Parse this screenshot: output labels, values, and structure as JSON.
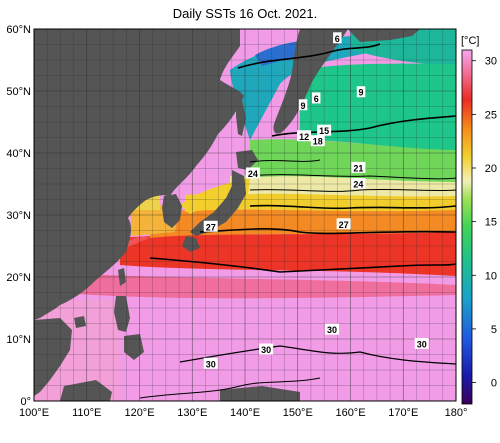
{
  "title": "Daily SSTs 16 Oct. 2021.",
  "map": {
    "lon_range": [
      100,
      180
    ],
    "lat_range": [
      0,
      60
    ],
    "land_color": "#555555",
    "grid_color": "#2a2a2a",
    "lon_ticks": [
      "100°E",
      "110°E",
      "120°E",
      "130°E",
      "140°E",
      "150°E",
      "160°E",
      "170°E",
      "180°"
    ],
    "lat_ticks": [
      "0°",
      "10°N",
      "20°N",
      "30°N",
      "40°N",
      "50°N",
      "60°N"
    ]
  },
  "colorbar": {
    "unit": "[°C]",
    "range": [
      -2,
      31
    ],
    "ticks": [
      "0",
      "5",
      "10",
      "15",
      "20",
      "25",
      "30"
    ],
    "tick_values": [
      0,
      5,
      10,
      15,
      20,
      25,
      30
    ]
  },
  "isotherm_labels": [
    {
      "text": "6",
      "lon": 157.5,
      "lat": 58.5
    },
    {
      "text": "9",
      "lon": 162,
      "lat": 49.8
    },
    {
      "text": "6",
      "lon": 153.5,
      "lat": 48.8
    },
    {
      "text": "9",
      "lon": 151,
      "lat": 47.7
    },
    {
      "text": "15",
      "lon": 155,
      "lat": 43.6
    },
    {
      "text": "12",
      "lon": 151.2,
      "lat": 42.7
    },
    {
      "text": "18",
      "lon": 153.8,
      "lat": 41.9
    },
    {
      "text": "21",
      "lon": 161.5,
      "lat": 37.6
    },
    {
      "text": "24",
      "lon": 141.5,
      "lat": 36.7
    },
    {
      "text": "24",
      "lon": 161.5,
      "lat": 35.0
    },
    {
      "text": "27",
      "lon": 133.5,
      "lat": 28.1
    },
    {
      "text": "27",
      "lon": 158.7,
      "lat": 28.5
    },
    {
      "text": "30",
      "lon": 156.5,
      "lat": 11.5
    },
    {
      "text": "30",
      "lon": 173.5,
      "lat": 9.2
    },
    {
      "text": "30",
      "lon": 144,
      "lat": 8.3
    },
    {
      "text": "30",
      "lon": 133.5,
      "lat": 6.0
    }
  ]
}
